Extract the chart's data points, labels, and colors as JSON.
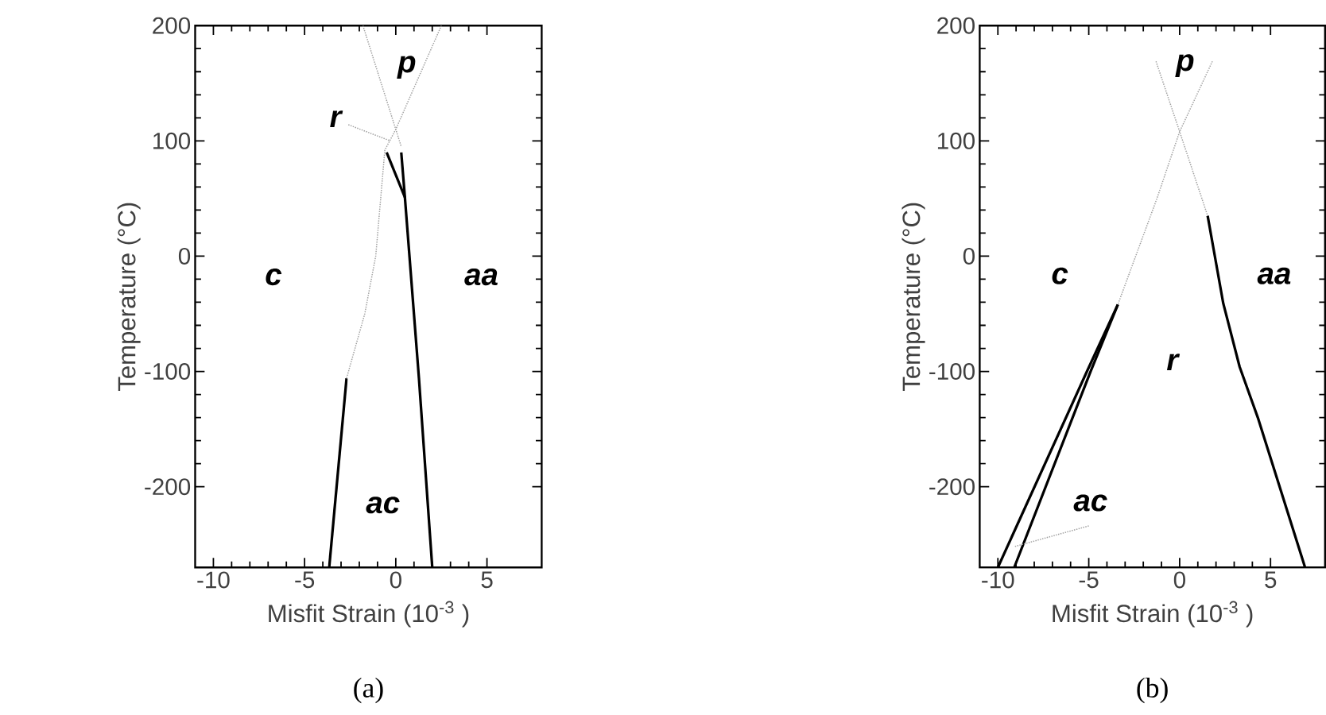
{
  "chart_data": [
    {
      "type": "line",
      "title": "(a)",
      "xlabel": "Misfit Strain (10$^{-3}$ )",
      "ylabel": "Temperature (°C)",
      "xlim": [
        -11,
        8
      ],
      "ylim": [
        -270,
        200
      ],
      "xticks": [
        -10,
        -5,
        0,
        5
      ],
      "yticks": [
        -200,
        -100,
        0,
        100,
        200
      ],
      "series": [
        {
          "color": "#a0a0a0",
          "line_style": "dotted",
          "x": [
            -1.8,
            0.0,
            0.3
          ],
          "values": [
            200,
            110,
            95
          ]
        },
        {
          "color": "#a0a0a0",
          "line_style": "dotted",
          "x": [
            2.5,
            0.0,
            -0.6,
            -1.1,
            -1.7,
            -2.7
          ],
          "values": [
            200,
            110,
            92,
            0,
            -50,
            -106
          ]
        },
        {
          "color": "#000000",
          "line_style": "solid",
          "x": [
            -2.7,
            -3.65
          ],
          "values": [
            -106,
            -270
          ]
        },
        {
          "color": "#000000",
          "line_style": "solid",
          "x": [
            -0.5,
            0.5
          ],
          "values": [
            90,
            51
          ]
        },
        {
          "color": "#000000",
          "line_style": "solid",
          "x": [
            0.3,
            0.5,
            1.27,
            2.0
          ],
          "values": [
            90,
            51,
            -106,
            -270
          ]
        },
        {
          "color": "#a0a0a0",
          "line_style": "dotted",
          "x": [
            -2.6,
            -0.3
          ],
          "values": [
            114,
            100
          ]
        }
      ],
      "annotations": [
        "p",
        "r",
        "c",
        "aa",
        "ac"
      ]
    },
    {
      "type": "line",
      "title": "(b)",
      "xlabel": "Misfit Strain (10$^{-3}$ )",
      "ylabel": "Temperature (°C)",
      "xlim": [
        -11,
        8
      ],
      "ylim": [
        -270,
        200
      ],
      "xticks": [
        -10,
        -5,
        0,
        5
      ],
      "yticks": [
        -200,
        -100,
        0,
        100,
        200
      ],
      "series": [
        {
          "color": "#a0a0a0",
          "line_style": "dotted",
          "x": [
            -1.3,
            0.0,
            1.54
          ],
          "values": [
            169,
            108,
            35
          ]
        },
        {
          "color": "#000000",
          "line_style": "solid",
          "x": [
            1.54,
            2.4,
            3.3,
            4.3,
            6.9
          ],
          "values": [
            35,
            -41,
            -96,
            -140,
            -270
          ]
        },
        {
          "color": "#a0a0a0",
          "line_style": "dotted",
          "x": [
            1.8,
            0.0,
            -1.25,
            -3.4
          ],
          "values": [
            169,
            108,
            50,
            -42
          ]
        },
        {
          "color": "#000000",
          "line_style": "solid",
          "x": [
            -3.4,
            -5.1,
            -10.0
          ],
          "values": [
            -42,
            -100,
            -270
          ]
        },
        {
          "color": "#000000",
          "line_style": "solid",
          "x": [
            -3.4,
            -4.9,
            -9.1
          ],
          "values": [
            -42,
            -100,
            -270
          ]
        },
        {
          "color": "#a0a0a0",
          "line_style": "dotted",
          "x": [
            -5.0,
            -9.1
          ],
          "values": [
            -234,
            -252
          ]
        }
      ],
      "annotations": [
        "p",
        "c",
        "aa",
        "r",
        "ac"
      ]
    }
  ]
}
